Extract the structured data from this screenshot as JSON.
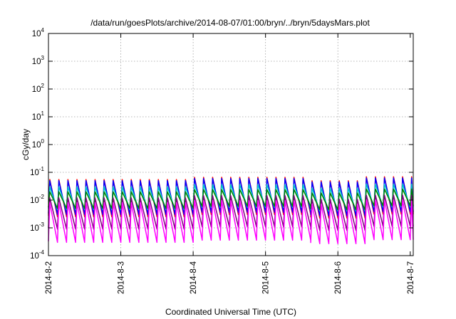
{
  "chart_data": {
    "type": "line",
    "title": "/data/run/goesPlots/archive/2014-08-07/01:00/bryn/../bryn/5daysMars.plot",
    "xlabel": "Coordinated Universal Time (UTC)",
    "ylabel": "cGy/day",
    "yscale": "log",
    "ylim": [
      0.0001,
      10000
    ],
    "xlim": [
      "2014-08-02 00:00",
      "2014-08-07 01:00"
    ],
    "grid": true,
    "xtick_labels": [
      "2014-8-2",
      "2014-8-3",
      "2014-8-4",
      "2014-8-5",
      "2014-8-6",
      "2014-8-7"
    ],
    "ytick_labels": [
      {
        "base": "10",
        "exp": "-4"
      },
      {
        "base": "10",
        "exp": "-3"
      },
      {
        "base": "10",
        "exp": "-2"
      },
      {
        "base": "10",
        "exp": "-1"
      },
      {
        "base": "10",
        "exp": "0"
      },
      {
        "base": "10",
        "exp": "1"
      },
      {
        "base": "10",
        "exp": "2"
      },
      {
        "base": "10",
        "exp": "3"
      },
      {
        "base": "10",
        "exp": "4"
      }
    ],
    "x_hours_unit": "hours since 2014-08-02 00:00",
    "sawtooth_period_hours": 3,
    "segments": [
      {
        "start_hour": 0,
        "end_hour": 48,
        "peak_factor": 1.0
      },
      {
        "start_hour": 48,
        "end_hour": 87,
        "peak_factor": 1.2
      },
      {
        "start_hour": 87,
        "end_hour": 105,
        "peak_factor": 0.9
      },
      {
        "start_hour": 105,
        "end_hour": 121,
        "peak_factor": 1.25
      }
    ],
    "series": [
      {
        "color": "#ff0000",
        "peak": 0.055,
        "trough": 0.0025
      },
      {
        "color": "#0000ff",
        "peak": 0.05,
        "trough": 0.003
      },
      {
        "color": "#00c8c8",
        "peak": 0.03,
        "trough": 0.0045
      },
      {
        "color": "#008000",
        "peak": 0.02,
        "trough": 0.005
      },
      {
        "color": "#800080",
        "peak": 0.012,
        "trough": 0.0009
      },
      {
        "color": "#ff00ff",
        "peak": 0.008,
        "trough": 0.0003
      }
    ]
  }
}
